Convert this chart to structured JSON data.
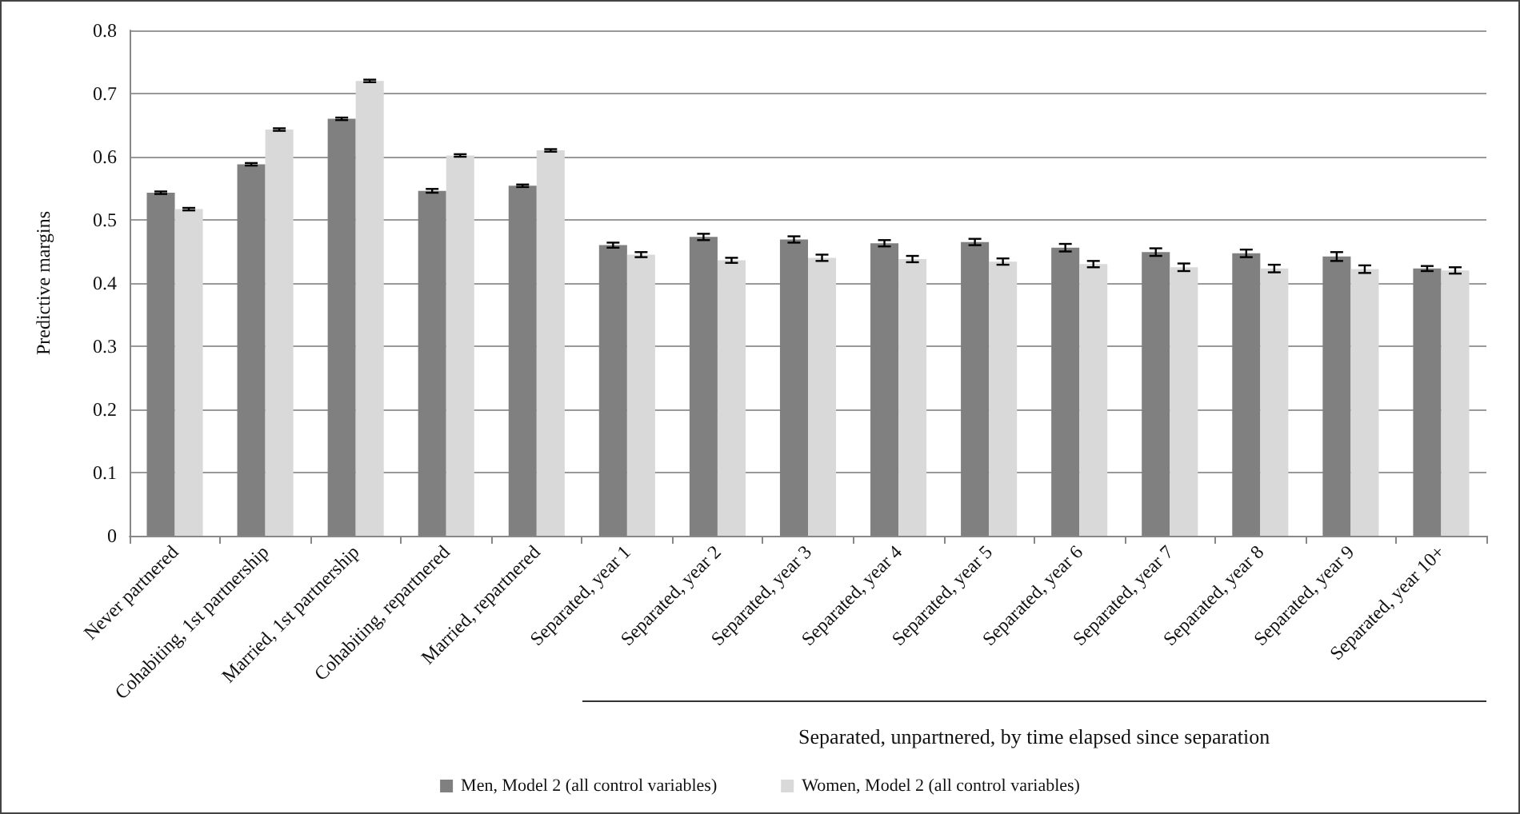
{
  "chart_data": {
    "type": "bar",
    "ylabel": "Predictive margins",
    "categories": [
      "Never partnered",
      "Cohabiting, 1st partnership",
      "Married, 1st partnership",
      "Cohabiting, repartnered",
      "Married, repartnered",
      "Separated, year 1",
      "Separated, year 2",
      "Separated, year 3",
      "Separated, year 4",
      "Separated, year 5",
      "Separated, year 6",
      "Separated, year 7",
      "Separated, year 8",
      "Separated, year 9",
      "Separated, year 10+"
    ],
    "series": [
      {
        "name": "Men, Model 2 (all control variables)",
        "color": "#808080",
        "values": [
          0.543,
          0.588,
          0.66,
          0.546,
          0.554,
          0.46,
          0.473,
          0.469,
          0.463,
          0.465,
          0.456,
          0.449,
          0.447,
          0.442,
          0.423
        ],
        "errors": [
          0.002,
          0.002,
          0.002,
          0.003,
          0.002,
          0.004,
          0.005,
          0.005,
          0.005,
          0.005,
          0.006,
          0.006,
          0.006,
          0.007,
          0.004
        ]
      },
      {
        "name": "Women, Model 2 (all control variables)",
        "color": "#d9d9d9",
        "values": [
          0.517,
          0.643,
          0.72,
          0.602,
          0.61,
          0.445,
          0.436,
          0.44,
          0.438,
          0.434,
          0.43,
          0.425,
          0.423,
          0.422,
          0.42
        ],
        "errors": [
          0.002,
          0.002,
          0.002,
          0.002,
          0.002,
          0.004,
          0.004,
          0.005,
          0.005,
          0.005,
          0.005,
          0.006,
          0.006,
          0.006,
          0.005
        ]
      }
    ],
    "ylim": [
      0,
      0.8
    ],
    "yticks": [
      0,
      0.1,
      0.2,
      0.3,
      0.4,
      0.5,
      0.6,
      0.7,
      0.8
    ],
    "grid": "y",
    "legend": "bottom",
    "annotations": [
      "Separated, unpartnered, by time elapsed since separation"
    ]
  }
}
